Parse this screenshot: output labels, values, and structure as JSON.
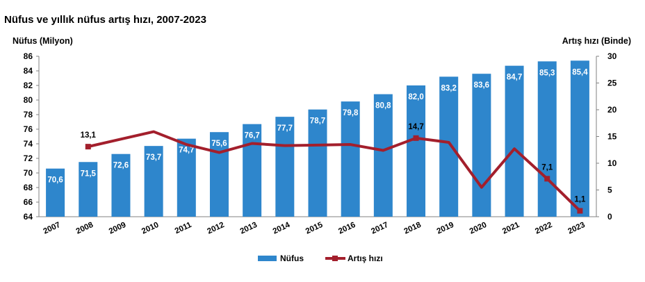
{
  "title": "Nüfus ve yıllık nüfus artış hızı, 2007-2023",
  "chart_data": {
    "type": "bar",
    "title": "Nüfus ve yıllık nüfus artış hızı, 2007-2023",
    "categories": [
      "2007",
      "2008",
      "2009",
      "2010",
      "2011",
      "2012",
      "2013",
      "2014",
      "2015",
      "2016",
      "2017",
      "2018",
      "2019",
      "2020",
      "2021",
      "2022",
      "2023"
    ],
    "ylabel": "Nüfus (Milyon)",
    "y2label": "Artış hızı (Binde)",
    "ylim": [
      64,
      86
    ],
    "y2lim": [
      0,
      30
    ],
    "yticks": [
      64,
      66,
      68,
      70,
      72,
      74,
      76,
      78,
      80,
      82,
      84,
      86
    ],
    "y2ticks": [
      0,
      5,
      10,
      15,
      20,
      25,
      30
    ],
    "grid": false,
    "legend_position": "bottom",
    "series": [
      {
        "name": "Nüfus",
        "type": "bar",
        "axis": "left",
        "color": "#2e86cc",
        "values": [
          70.6,
          71.5,
          72.6,
          73.7,
          74.7,
          75.6,
          76.7,
          77.7,
          78.7,
          79.8,
          80.8,
          82.0,
          83.2,
          83.6,
          84.7,
          85.3,
          85.4
        ],
        "labels": [
          "70,6",
          "71,5",
          "72,6",
          "73,7",
          "74,7",
          "75,6",
          "76,7",
          "77,7",
          "78,7",
          "79,8",
          "80,8",
          "82,0",
          "83,2",
          "83,6",
          "84,7",
          "85,3",
          "85,4"
        ]
      },
      {
        "name": "Artış hızı",
        "type": "line",
        "axis": "right",
        "color": "#a31f2c",
        "x": [
          "2008",
          "2009",
          "2010",
          "2011",
          "2012",
          "2013",
          "2014",
          "2015",
          "2016",
          "2017",
          "2018",
          "2019",
          "2020",
          "2021",
          "2022",
          "2023"
        ],
        "values": [
          13.1,
          14.5,
          15.9,
          13.5,
          12.0,
          13.7,
          13.3,
          13.4,
          13.5,
          12.4,
          14.7,
          13.9,
          5.5,
          12.7,
          7.1,
          1.1
        ],
        "point_labels": {
          "2008": "13,1",
          "2018": "14,7",
          "2022": "7,1",
          "2023": "1,1"
        }
      }
    ]
  }
}
